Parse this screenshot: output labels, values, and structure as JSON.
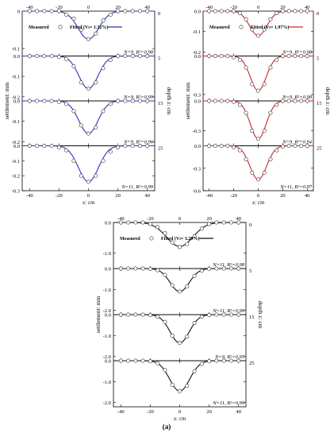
{
  "caption": "(a)",
  "chart_data": [
    {
      "type": "scatter",
      "group": "top-left",
      "legend": {
        "measured": "Measured",
        "fitted": "Fitted (Vₗ= 1.32%)"
      },
      "series_color": "#2b35b8",
      "ylabel_left": "settlement: mm",
      "ylabel_right": "depth z: cm",
      "xlabel": "x: cm",
      "xlim": [
        -45,
        45
      ],
      "xticks": [
        -40,
        -20,
        0,
        20,
        40
      ],
      "xtick_labels": [
        "-40",
        "-20",
        "0",
        "20",
        "40"
      ],
      "panels": [
        {
          "depth": "0",
          "ylim": [
            -0.12,
            0.0
          ],
          "yticks": [
            0.0,
            -0.1
          ],
          "ytick_labels": [
            "0",
            "-0.1"
          ],
          "stat": "N=9, R²=0.98",
          "x": [
            -40,
            -35,
            -30,
            -25,
            -20,
            -15,
            -10,
            -5,
            0,
            5,
            10,
            15,
            20,
            25,
            30,
            35,
            40
          ],
          "y": [
            0,
            0,
            0,
            0,
            0,
            -0.01,
            -0.02,
            -0.05,
            -0.075,
            -0.06,
            -0.025,
            -0.01,
            0,
            0,
            0,
            0,
            0
          ],
          "fit_peak": -0.075,
          "fit_sigma": 7
        },
        {
          "depth": "5",
          "ylim": [
            -0.22,
            0.0
          ],
          "yticks": [
            0.0,
            -0.1,
            -0.2
          ],
          "ytick_labels": [
            "0.0",
            "-0.1",
            "-0.2"
          ],
          "stat": "N=9, R²=0.99",
          "x": [
            -40,
            -35,
            -30,
            -25,
            -20,
            -15,
            -10,
            -5,
            0,
            5,
            10,
            15,
            20,
            25,
            30,
            35,
            40
          ],
          "y": [
            0,
            0,
            0,
            0,
            -0.005,
            -0.015,
            -0.05,
            -0.13,
            -0.16,
            -0.13,
            -0.06,
            -0.02,
            0,
            0,
            0,
            0,
            0
          ],
          "fit_peak": -0.16,
          "fit_sigma": 6.5
        },
        {
          "depth": "15",
          "ylim": [
            -0.22,
            0.0
          ],
          "yticks": [
            0.0,
            -0.1,
            -0.2
          ],
          "ytick_labels": [
            "0.0",
            "-0.1",
            "-0.2"
          ],
          "stat": "N=9, R²=0.96",
          "x": [
            -40,
            -35,
            -30,
            -25,
            -20,
            -15,
            -10,
            -5,
            0,
            5,
            10,
            15,
            20,
            25,
            30,
            35,
            40
          ],
          "y": [
            0,
            0,
            0,
            0,
            -0.005,
            -0.015,
            -0.05,
            -0.12,
            -0.16,
            -0.13,
            -0.05,
            -0.015,
            0,
            0,
            0,
            0,
            0
          ],
          "fit_peak": -0.16,
          "fit_sigma": 6.5
        },
        {
          "depth": "25",
          "ylim": [
            -0.3,
            0.0
          ],
          "yticks": [
            0.0,
            -0.1,
            -0.2,
            -0.3
          ],
          "ytick_labels": [
            "0.0",
            "-0.1",
            "-0.2",
            "-0.3"
          ],
          "stat": "N=11, R²=0.99",
          "x": [
            -40,
            -35,
            -30,
            -25,
            -20,
            -15,
            -10,
            -5,
            0,
            5,
            10,
            15,
            20,
            25,
            30,
            35,
            40
          ],
          "y": [
            0,
            0,
            0,
            0,
            -0.01,
            -0.03,
            -0.1,
            -0.2,
            -0.24,
            -0.2,
            -0.1,
            -0.04,
            -0.01,
            0,
            0,
            0,
            0
          ],
          "fit_peak": -0.24,
          "fit_sigma": 6.8
        }
      ]
    },
    {
      "type": "scatter",
      "group": "top-right",
      "legend": {
        "measured": "Measured",
        "fitted": "Fitted (Vₗ= 1.97%)"
      },
      "series_color": "#d42424",
      "ylabel_left": "settlement: mm",
      "ylabel_right": "depth z: cm",
      "xlabel": "x: cm",
      "xlim": [
        -45,
        45
      ],
      "xticks": [
        -40,
        -20,
        0,
        20,
        40
      ],
      "xtick_labels": [
        "-40",
        "-20",
        "0",
        "20",
        "40"
      ],
      "panels": [
        {
          "depth": "0",
          "ylim": [
            -0.22,
            0.0
          ],
          "yticks": [
            0.0,
            -0.1,
            -0.2
          ],
          "ytick_labels": [
            "0.0",
            "-0.1",
            "-0.2"
          ],
          "stat": "N=9, R²=0.98",
          "x": [
            -40,
            -35,
            -30,
            -25,
            -20,
            -15,
            -10,
            -5,
            0,
            5,
            10,
            15,
            20,
            25,
            30,
            35,
            40
          ],
          "y": [
            0,
            0,
            0,
            0,
            0,
            -0.01,
            -0.04,
            -0.09,
            -0.12,
            -0.09,
            -0.04,
            -0.01,
            0,
            0,
            0,
            0,
            0
          ],
          "fit_peak": -0.12,
          "fit_sigma": 7
        },
        {
          "depth": "5",
          "ylim": [
            -0.35,
            0.0
          ],
          "yticks": [
            0.0,
            -0.3
          ],
          "ytick_labels": [
            "0.0",
            "-0.3"
          ],
          "stat": "N=9, R²=0.98",
          "x": [
            -40,
            -35,
            -30,
            -25,
            -20,
            -15,
            -10,
            -5,
            0,
            5,
            10,
            15,
            20,
            25,
            30,
            35,
            40
          ],
          "y": [
            0,
            0,
            0,
            0,
            -0.01,
            -0.03,
            -0.09,
            -0.22,
            -0.27,
            -0.22,
            -0.09,
            -0.03,
            0,
            0,
            0,
            0,
            0
          ],
          "fit_peak": -0.27,
          "fit_sigma": 6.5
        },
        {
          "depth": "15",
          "ylim": [
            -0.45,
            0.0
          ],
          "yticks": [
            0.0,
            -0.3
          ],
          "ytick_labels": [
            "0.0",
            "-0.3"
          ],
          "stat": "N=9, R²=0.94",
          "x": [
            -40,
            -35,
            -30,
            -25,
            -20,
            -15,
            -10,
            -5,
            0,
            5,
            10,
            15,
            20,
            25,
            30,
            35,
            40
          ],
          "y": [
            0,
            0,
            0,
            0,
            -0.01,
            -0.04,
            -0.12,
            -0.3,
            -0.38,
            -0.3,
            -0.12,
            -0.04,
            0,
            0,
            0,
            0,
            0
          ],
          "fit_peak": -0.38,
          "fit_sigma": 6.5
        },
        {
          "depth": "25",
          "ylim": [
            -0.6,
            0.0
          ],
          "yticks": [
            0.0,
            -0.3,
            -0.6
          ],
          "ytick_labels": [
            "0.0",
            "-0.3",
            "-0.6"
          ],
          "stat": "N=11, R²=0.97",
          "x": [
            -40,
            -35,
            -30,
            -25,
            -20,
            -15,
            -10,
            -5,
            0,
            5,
            10,
            15,
            20,
            25,
            30,
            35,
            40
          ],
          "y": [
            0,
            0,
            0,
            0,
            -0.02,
            -0.06,
            -0.18,
            -0.36,
            -0.45,
            -0.36,
            -0.18,
            -0.06,
            -0.01,
            0,
            0,
            0,
            0
          ],
          "fit_peak": -0.45,
          "fit_sigma": 6.8
        }
      ]
    },
    {
      "type": "scatter",
      "group": "bottom",
      "legend": {
        "measured": "Measured",
        "fitted": "Fitted (Vₗ= 3.29%)"
      },
      "series_color": "#111111",
      "ylabel_left": "settlement: mm",
      "ylabel_right": "depth z: cm",
      "xlabel": "x: cm",
      "xlim": [
        -45,
        45
      ],
      "xticks": [
        -40,
        -20,
        0,
        20,
        40
      ],
      "xtick_labels": [
        "-40",
        "-20",
        "0",
        "20",
        "40"
      ],
      "panels": [
        {
          "depth": "0",
          "ylim": [
            -1.5,
            0.0
          ],
          "yticks": [
            0.0,
            -1.0
          ],
          "ytick_labels": [
            "0.0",
            "-1.0"
          ],
          "stat": "N=11, R²=0.98",
          "x": [
            -40,
            -35,
            -30,
            -25,
            -20,
            -15,
            -10,
            -5,
            0,
            5,
            10,
            15,
            20,
            25,
            30,
            35,
            40
          ],
          "y": [
            0,
            0,
            0,
            0,
            -0.05,
            -0.15,
            -0.35,
            -0.65,
            -0.8,
            -0.7,
            -0.45,
            -0.2,
            -0.05,
            0,
            0,
            0,
            0
          ],
          "fit_peak": -0.78,
          "fit_sigma": 9
        },
        {
          "depth": "5",
          "ylim": [
            -2.2,
            0.0
          ],
          "yticks": [
            0.0,
            -1.0,
            -2.0
          ],
          "ytick_labels": [
            "0.0",
            "-1.0",
            "-2.0"
          ],
          "stat": "N=11, R²=0.99",
          "x": [
            -40,
            -35,
            -30,
            -25,
            -20,
            -15,
            -10,
            -5,
            0,
            5,
            10,
            15,
            20,
            25,
            30,
            35,
            40
          ],
          "y": [
            0,
            0,
            0,
            0,
            -0.02,
            -0.08,
            -0.3,
            -0.8,
            -1.1,
            -0.85,
            -0.35,
            -0.1,
            -0.02,
            0,
            0,
            0,
            0
          ],
          "fit_peak": -1.1,
          "fit_sigma": 6.5
        },
        {
          "depth": "15",
          "ylim": [
            -2.2,
            0.0
          ],
          "yticks": [
            0.0,
            -1.0,
            -2.0
          ],
          "ytick_labels": [
            "0.0",
            "-1.0",
            "-2.0"
          ],
          "stat": "N=9, R²=0.95",
          "x": [
            -40,
            -35,
            -30,
            -25,
            -20,
            -15,
            -10,
            -5,
            0,
            5,
            10,
            15,
            20,
            25,
            30,
            35,
            40
          ],
          "y": [
            0,
            0,
            0,
            0,
            -0.03,
            -0.1,
            -0.35,
            -1.0,
            -1.35,
            -1.05,
            -0.4,
            -0.1,
            -0.02,
            0,
            0,
            0,
            0
          ],
          "fit_peak": -1.35,
          "fit_sigma": 6.5
        },
        {
          "depth": "25",
          "ylim": [
            -2.2,
            0.0
          ],
          "yticks": [
            0.0,
            -1.0,
            -2.0
          ],
          "ytick_labels": [
            "0.0",
            "-1.0",
            "-2.0"
          ],
          "stat": "N=11, R²=0.99",
          "x": [
            -40,
            -35,
            -30,
            -25,
            -20,
            -15,
            -10,
            -5,
            0,
            5,
            10,
            15,
            20,
            25,
            30,
            35,
            40
          ],
          "y": [
            0,
            0,
            0,
            0,
            -0.03,
            -0.12,
            -0.45,
            -1.15,
            -1.45,
            -1.2,
            -0.5,
            -0.15,
            -0.03,
            0,
            0,
            0,
            0
          ],
          "fit_peak": -1.45,
          "fit_sigma": 6.8
        }
      ]
    }
  ]
}
